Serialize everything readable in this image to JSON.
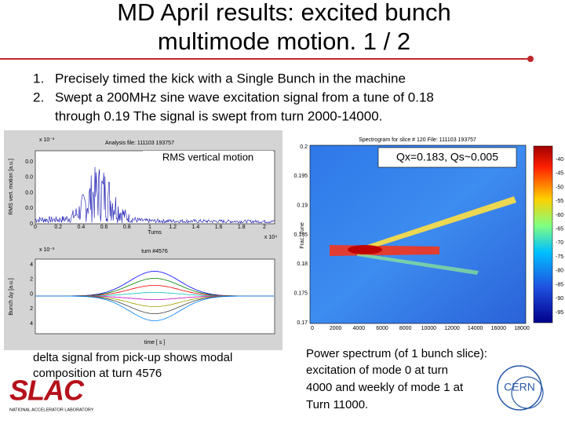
{
  "title": [
    "MD April results: excited bunch",
    "multimode motion. 1 / 2"
  ],
  "bullets": [
    {
      "number": "1.",
      "lines": [
        "Precisely timed the kick with a Single Bunch in the machine"
      ]
    },
    {
      "number": "2.",
      "lines": [
        "Swept a 200MHz sine wave excitation signal from a tune of 0.18",
        "through 0.19 The signal is swept from turn 2000-14000."
      ]
    }
  ],
  "left_figure": {
    "top_plot": {
      "title": "Analysis file: 111103 193757",
      "label": "RMS vertical motion",
      "y_label": "RMS vert. motion [a.u.]",
      "y_exponent": "x 10⁻³",
      "yticks": [
        "0.0",
        "0.0",
        "0.0",
        "0.0",
        "0"
      ],
      "xticks": [
        "0",
        "0.2",
        "0.4",
        "0.6",
        "0.8",
        "1",
        "1.2",
        "1.4",
        "1.6",
        "1.8",
        "2"
      ],
      "x_label": "Turns",
      "x_exponent": "x 10⁴"
    },
    "bottom_plot": {
      "title": "turn #4576",
      "y_label": "Bunch Δy [a.u.]",
      "y_exponent": "x 10⁻³",
      "yticks": [
        "4",
        "2",
        "0",
        "2",
        "4"
      ],
      "x_label": "time [ s ]"
    }
  },
  "right_figure": {
    "title": "Spectrogram for slice # 120  File: 111103 193757",
    "label": "Qx=0.183, Qs~0.005",
    "y_label": "Frac. Tune",
    "yticks": [
      "0.2",
      "0.195",
      "0.19",
      "0.185",
      "0.18",
      "0.175",
      "0.17"
    ],
    "xticks": [
      "0",
      "2000",
      "4000",
      "6000",
      "8000",
      "10000",
      "12000",
      "14000",
      "16000",
      "18000"
    ],
    "colorbar_ticks": [
      "-40",
      "-45",
      "-50",
      "-55",
      "-60",
      "-65",
      "-70",
      "-75",
      "-80",
      "-85",
      "-90",
      "-95"
    ]
  },
  "captions": {
    "left": [
      "delta signal from pick-up shows modal",
      "composition at turn 4576"
    ],
    "right": [
      "Power spectrum (of 1 bunch slice):",
      "excitation of mode 0 at turn",
      "4000 and weekly of mode 1 at",
      "Turn 11000."
    ]
  },
  "logos": {
    "slac": "SLAC",
    "slac_sub": "NATIONAL ACCELERATOR LABORATORY",
    "cern": "CERN"
  }
}
